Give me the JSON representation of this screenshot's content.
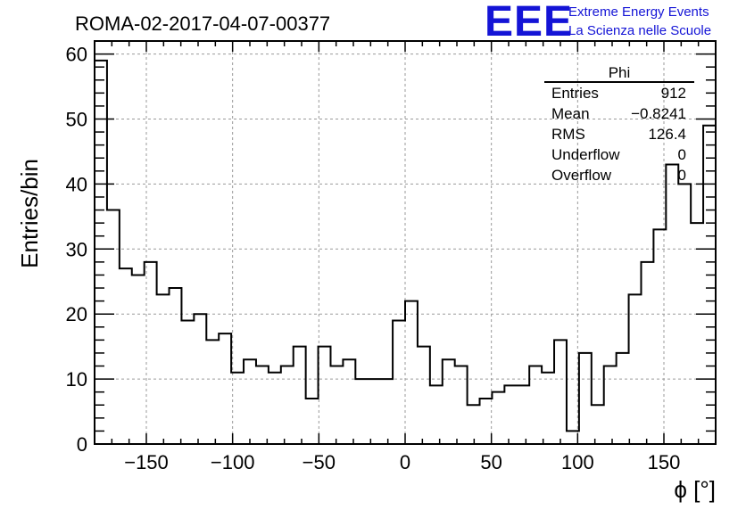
{
  "title": "ROMA-02-2017-04-07-00377",
  "logo": {
    "mark": "EEE",
    "line1": "Extreme Energy Events",
    "line2": "La Scienza nelle Scuole",
    "color": "#1414d6"
  },
  "stats_box": {
    "title": "Phi",
    "rows": [
      {
        "label": "Entries",
        "value": "912"
      },
      {
        "label": "Mean",
        "value": "−0.8241"
      },
      {
        "label": "RMS",
        "value": "126.4"
      },
      {
        "label": "Underflow",
        "value": "0"
      },
      {
        "label": "Overflow",
        "value": "0"
      }
    ]
  },
  "chart_data": {
    "type": "bar",
    "histogram": true,
    "title": "ROMA-02-2017-04-07-00377",
    "xlabel": "ϕ [°]",
    "ylabel": "Entries/bin",
    "xlim": [
      -180,
      180
    ],
    "ylim": [
      0,
      62
    ],
    "bin_width": 7.2,
    "x_ticks": [
      -150,
      -100,
      -50,
      0,
      50,
      100,
      150
    ],
    "x_tick_labels": [
      "−150",
      "−100",
      "−50",
      "0",
      "50",
      "100",
      "150"
    ],
    "y_ticks": [
      0,
      10,
      20,
      30,
      40,
      50,
      60
    ],
    "y_tick_labels": [
      "0",
      "10",
      "20",
      "30",
      "40",
      "50",
      "60"
    ],
    "grid": true,
    "values": [
      59,
      36,
      27,
      26,
      28,
      23,
      24,
      19,
      20,
      16,
      17,
      11,
      13,
      12,
      11,
      12,
      15,
      7,
      15,
      12,
      13,
      10,
      10,
      10,
      19,
      22,
      15,
      9,
      13,
      12,
      6,
      7,
      8,
      9,
      9,
      12,
      11,
      16,
      2,
      14,
      6,
      12,
      14,
      23,
      28,
      33,
      43,
      40,
      34,
      49
    ],
    "line_color": "#000000"
  }
}
